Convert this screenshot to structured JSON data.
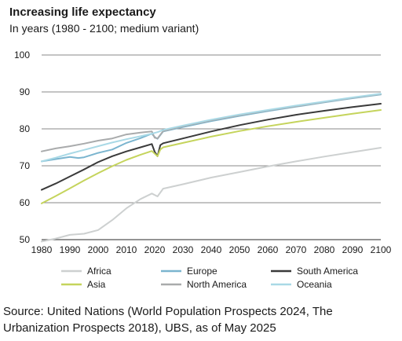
{
  "chart_data": {
    "type": "line",
    "title": "Increasing life expectancy",
    "subtitle": "In years (1980 - 2100; medium variant)",
    "xlabel": "",
    "ylabel": "",
    "xlim": [
      1980,
      2100
    ],
    "ylim": [
      50,
      100
    ],
    "x_ticks": [
      1980,
      1990,
      2000,
      2010,
      2020,
      2030,
      2040,
      2050,
      2060,
      2070,
      2080,
      2090,
      2100
    ],
    "y_ticks": [
      50,
      60,
      70,
      80,
      90,
      100
    ],
    "grid": "horizontal",
    "legend_position": "bottom",
    "series": [
      {
        "name": "Africa",
        "color": "#cdd0d0",
        "points": [
          [
            1980,
            49.5
          ],
          [
            1985,
            50.3
          ],
          [
            1990,
            51.3
          ],
          [
            1995,
            51.6
          ],
          [
            2000,
            52.6
          ],
          [
            2005,
            55.3
          ],
          [
            2010,
            58.5
          ],
          [
            2015,
            61.0
          ],
          [
            2019,
            62.5
          ],
          [
            2021,
            61.7
          ],
          [
            2023,
            63.8
          ],
          [
            2030,
            65.0
          ],
          [
            2040,
            66.8
          ],
          [
            2050,
            68.3
          ],
          [
            2060,
            69.8
          ],
          [
            2070,
            71.2
          ],
          [
            2080,
            72.5
          ],
          [
            2090,
            73.7
          ],
          [
            2100,
            74.9
          ]
        ]
      },
      {
        "name": "Europe",
        "color": "#7bb5cf",
        "points": [
          [
            1980,
            71.2
          ],
          [
            1985,
            71.8
          ],
          [
            1990,
            72.4
          ],
          [
            1993,
            72.1
          ],
          [
            1995,
            72.3
          ],
          [
            2000,
            73.5
          ],
          [
            2005,
            74.4
          ],
          [
            2010,
            76.2
          ],
          [
            2015,
            77.5
          ],
          [
            2019,
            78.7
          ],
          [
            2020,
            77.8
          ],
          [
            2021,
            77.3
          ],
          [
            2023,
            79.3
          ],
          [
            2030,
            80.5
          ],
          [
            2040,
            82.1
          ],
          [
            2050,
            83.5
          ],
          [
            2060,
            84.8
          ],
          [
            2070,
            86.0
          ],
          [
            2080,
            87.2
          ],
          [
            2090,
            88.3
          ],
          [
            2100,
            89.3
          ]
        ]
      },
      {
        "name": "South America",
        "color": "#3a3a3a",
        "points": [
          [
            1980,
            63.5
          ],
          [
            1985,
            65.2
          ],
          [
            1990,
            67.1
          ],
          [
            1995,
            69.0
          ],
          [
            2000,
            71.0
          ],
          [
            2005,
            72.6
          ],
          [
            2010,
            73.9
          ],
          [
            2015,
            75.0
          ],
          [
            2019,
            75.9
          ],
          [
            2020,
            73.8
          ],
          [
            2021,
            72.6
          ],
          [
            2022,
            75.6
          ],
          [
            2023,
            76.1
          ],
          [
            2030,
            77.4
          ],
          [
            2040,
            79.3
          ],
          [
            2050,
            81.0
          ],
          [
            2060,
            82.5
          ],
          [
            2070,
            83.8
          ],
          [
            2080,
            84.9
          ],
          [
            2090,
            85.9
          ],
          [
            2100,
            86.8
          ]
        ]
      },
      {
        "name": "Asia",
        "color": "#c5d45c",
        "points": [
          [
            1980,
            59.8
          ],
          [
            1985,
            61.8
          ],
          [
            1990,
            63.9
          ],
          [
            1995,
            66.0
          ],
          [
            2000,
            68.0
          ],
          [
            2005,
            69.9
          ],
          [
            2010,
            71.6
          ],
          [
            2015,
            73.0
          ],
          [
            2019,
            74.0
          ],
          [
            2020,
            73.3
          ],
          [
            2021,
            72.6
          ],
          [
            2022,
            74.4
          ],
          [
            2023,
            75.0
          ],
          [
            2030,
            76.2
          ],
          [
            2040,
            77.9
          ],
          [
            2050,
            79.4
          ],
          [
            2060,
            80.7
          ],
          [
            2070,
            81.9
          ],
          [
            2080,
            83.0
          ],
          [
            2090,
            84.1
          ],
          [
            2100,
            85.1
          ]
        ]
      },
      {
        "name": "North America",
        "color": "#a9abac",
        "points": [
          [
            1980,
            73.9
          ],
          [
            1985,
            74.7
          ],
          [
            1990,
            75.3
          ],
          [
            1995,
            76.0
          ],
          [
            2000,
            76.8
          ],
          [
            2005,
            77.4
          ],
          [
            2010,
            78.5
          ],
          [
            2015,
            79.0
          ],
          [
            2019,
            79.3
          ],
          [
            2020,
            77.6
          ],
          [
            2021,
            77.4
          ],
          [
            2023,
            79.4
          ],
          [
            2030,
            80.7
          ],
          [
            2040,
            82.3
          ],
          [
            2050,
            83.7
          ],
          [
            2060,
            85.0
          ],
          [
            2070,
            86.1
          ],
          [
            2080,
            87.3
          ],
          [
            2090,
            88.4
          ],
          [
            2100,
            89.4
          ]
        ]
      },
      {
        "name": "Oceania",
        "color": "#a9d9e6",
        "points": [
          [
            1980,
            71.2
          ],
          [
            1985,
            72.2
          ],
          [
            1990,
            73.3
          ],
          [
            1995,
            74.3
          ],
          [
            2000,
            75.3
          ],
          [
            2005,
            76.3
          ],
          [
            2010,
            77.2
          ],
          [
            2015,
            78.0
          ],
          [
            2019,
            78.7
          ],
          [
            2021,
            79.1
          ],
          [
            2023,
            79.7
          ],
          [
            2030,
            80.9
          ],
          [
            2040,
            82.5
          ],
          [
            2050,
            83.9
          ],
          [
            2060,
            85.1
          ],
          [
            2070,
            86.3
          ],
          [
            2080,
            87.4
          ],
          [
            2090,
            88.5
          ],
          [
            2100,
            89.5
          ]
        ]
      }
    ]
  },
  "source": "Source: United Nations (World Population Prospects 2024, The Urbanization Prospects 2018), UBS, as of May 2025"
}
